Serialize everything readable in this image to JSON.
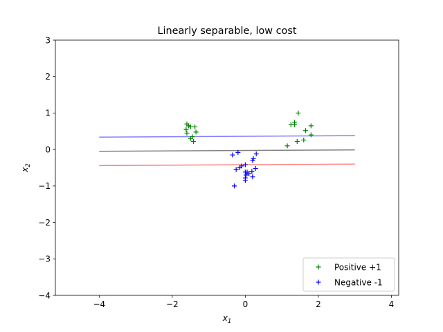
{
  "chart_data": {
    "type": "scatter",
    "title": "Linearly separable, low cost",
    "xlabel_base": "x",
    "xlabel_sub": "1",
    "ylabel_base": "x",
    "ylabel_sub": "2",
    "xlim": [
      -5.2,
      4.2
    ],
    "ylim": [
      -4,
      3
    ],
    "xticks": [
      -4,
      -2,
      0,
      2,
      4
    ],
    "yticks": [
      -4,
      -3,
      -2,
      -1,
      0,
      1,
      2,
      3
    ],
    "grid": false,
    "legend_position": "bottom-right",
    "series": [
      {
        "name": "Positive +1",
        "marker": "+",
        "color": "#008000",
        "points": [
          [
            -1.6,
            0.7
          ],
          [
            -1.55,
            0.65
          ],
          [
            -1.5,
            0.62
          ],
          [
            -1.38,
            0.62
          ],
          [
            -1.62,
            0.55
          ],
          [
            -1.35,
            0.48
          ],
          [
            -1.6,
            0.45
          ],
          [
            -1.45,
            0.35
          ],
          [
            -1.5,
            0.3
          ],
          [
            -1.42,
            0.22
          ],
          [
            1.45,
            1.0
          ],
          [
            1.35,
            0.75
          ],
          [
            1.25,
            0.68
          ],
          [
            1.35,
            0.68
          ],
          [
            1.8,
            0.65
          ],
          [
            1.65,
            0.52
          ],
          [
            1.8,
            0.4
          ],
          [
            1.6,
            0.26
          ],
          [
            1.42,
            0.22
          ],
          [
            1.15,
            0.1
          ]
        ]
      },
      {
        "name": "Negative -1",
        "marker": "+",
        "color": "#0000ff",
        "points": [
          [
            -0.2,
            -0.08
          ],
          [
            -0.35,
            -0.15
          ],
          [
            0.3,
            -0.12
          ],
          [
            0.22,
            -0.25
          ],
          [
            0.2,
            -0.3
          ],
          [
            -0.1,
            -0.45
          ],
          [
            -0.15,
            -0.5
          ],
          [
            -0.25,
            -0.55
          ],
          [
            0.28,
            -0.52
          ],
          [
            0.0,
            -0.42
          ],
          [
            0.05,
            -0.62
          ],
          [
            0.0,
            -0.62
          ],
          [
            0.18,
            -0.6
          ],
          [
            0.1,
            -0.66
          ],
          [
            0.02,
            -0.7
          ],
          [
            0.0,
            -0.78
          ],
          [
            0.2,
            -0.75
          ],
          [
            0.0,
            -0.85
          ],
          [
            -0.3,
            -1.0
          ]
        ]
      }
    ],
    "lines": [
      {
        "name": "upper-margin",
        "color": "#8080ff",
        "x": [
          -4,
          3
        ],
        "y": [
          0.34,
          0.38
        ]
      },
      {
        "name": "decision-boundary",
        "color": "#808080",
        "x": [
          -4,
          3
        ],
        "y": [
          -0.05,
          -0.01
        ]
      },
      {
        "name": "lower-margin",
        "color": "#ff8080",
        "x": [
          -4,
          3
        ],
        "y": [
          -0.44,
          -0.4
        ]
      }
    ]
  }
}
